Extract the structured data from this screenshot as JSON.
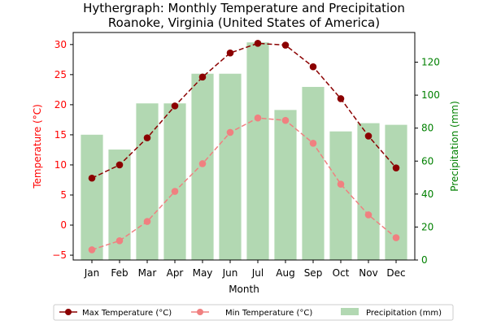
{
  "chart_data": {
    "type": "bar+line",
    "title": "Hythergraph: Monthly Temperature and Precipitation",
    "subtitle": "Roanoke, Virginia (United States of America)",
    "xlabel": "Month",
    "ylabel_left": "Temperature (°C)",
    "ylabel_right": "Precipitation (mm)",
    "categories": [
      "Jan",
      "Feb",
      "Mar",
      "Apr",
      "May",
      "Jun",
      "Jul",
      "Aug",
      "Sep",
      "Oct",
      "Nov",
      "Dec"
    ],
    "ylim_left": [
      -5.8,
      32
    ],
    "ylim_right": [
      0,
      138
    ],
    "yticks_left": [
      -5,
      0,
      5,
      10,
      15,
      20,
      25,
      30
    ],
    "yticks_right": [
      0,
      20,
      40,
      60,
      80,
      100,
      120
    ],
    "grid": false,
    "legend_position": "bottom",
    "colors": {
      "max_line": "#8b0000",
      "min_line": "#f08080",
      "bars": "#b2d8b2",
      "left_axis": "#ff0000",
      "right_axis": "#008000"
    },
    "series": [
      {
        "name": "Max Temperature (°C)",
        "axis": "left",
        "kind": "line",
        "values": [
          7.8,
          10.0,
          14.5,
          19.8,
          24.6,
          28.6,
          30.2,
          29.9,
          26.3,
          21.0,
          14.8,
          9.5
        ]
      },
      {
        "name": "Min Temperature (°C)",
        "axis": "left",
        "kind": "line",
        "values": [
          -4.1,
          -2.6,
          0.6,
          5.6,
          10.2,
          15.4,
          17.8,
          17.4,
          13.6,
          6.8,
          1.7,
          -2.1
        ]
      },
      {
        "name": "Precipitation (mm)",
        "axis": "right",
        "kind": "bar",
        "values": [
          76,
          67,
          95,
          95,
          113,
          113,
          132,
          91,
          105,
          78,
          83,
          82
        ]
      }
    ]
  }
}
